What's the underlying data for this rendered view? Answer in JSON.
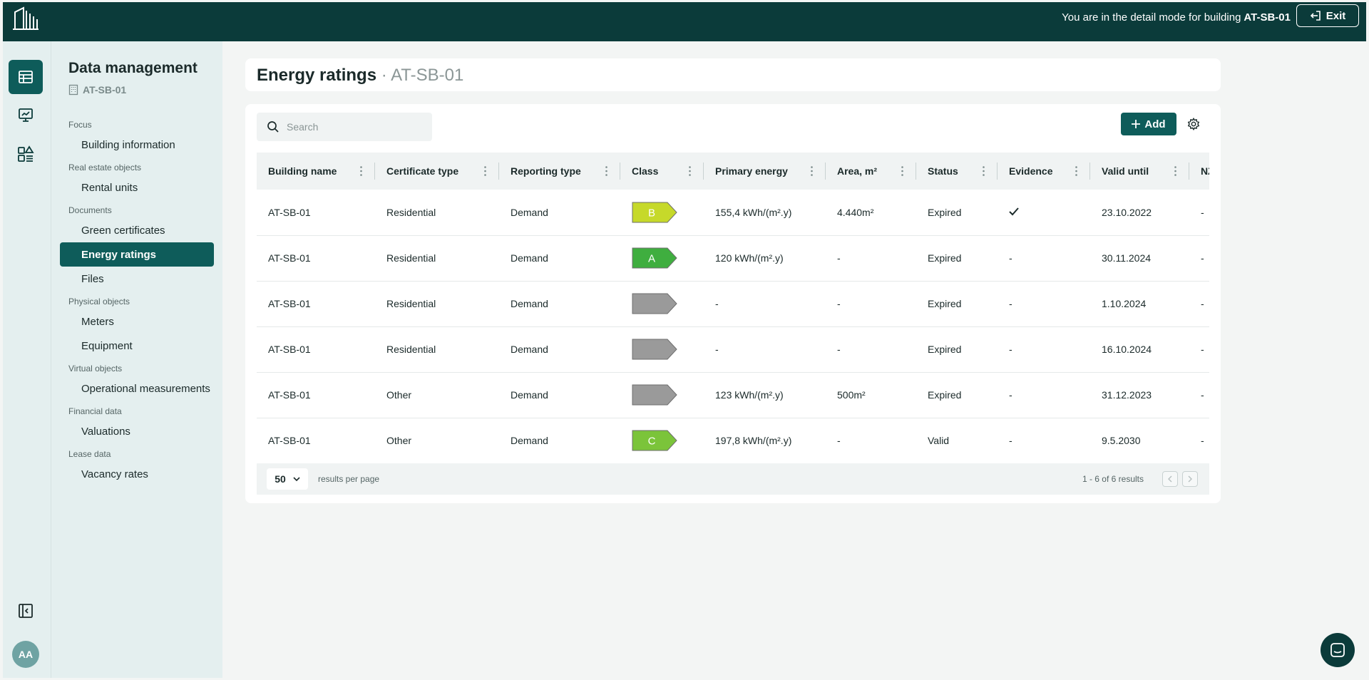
{
  "topbar": {
    "detail_prefix": "You are in the detail mode for building",
    "building": "AT-SB-01",
    "exit_label": "Exit"
  },
  "sidebar": {
    "title": "Data management",
    "building": "AT-SB-01",
    "nav": [
      {
        "type": "section",
        "label": "Focus"
      },
      {
        "type": "item",
        "label": "Building information"
      },
      {
        "type": "section",
        "label": "Real estate objects"
      },
      {
        "type": "item",
        "label": "Rental units"
      },
      {
        "type": "section",
        "label": "Documents"
      },
      {
        "type": "item",
        "label": "Green certificates"
      },
      {
        "type": "item",
        "label": "Energy ratings",
        "active": true
      },
      {
        "type": "item",
        "label": "Files"
      },
      {
        "type": "section",
        "label": "Physical objects"
      },
      {
        "type": "item",
        "label": "Meters"
      },
      {
        "type": "item",
        "label": "Equipment"
      },
      {
        "type": "section",
        "label": "Virtual objects"
      },
      {
        "type": "item",
        "label": "Operational measurements"
      },
      {
        "type": "section",
        "label": "Financial data"
      },
      {
        "type": "item",
        "label": "Valuations"
      },
      {
        "type": "section",
        "label": "Lease data"
      },
      {
        "type": "item",
        "label": "Vacancy rates"
      }
    ],
    "avatar_initials": "AA"
  },
  "page": {
    "title": "Energy ratings",
    "separator": " · ",
    "building": "AT-SB-01"
  },
  "toolbar": {
    "search_placeholder": "Search",
    "add_label": "Add"
  },
  "table": {
    "columns": [
      "Building name",
      "Certificate type",
      "Reporting type",
      "Class",
      "Primary energy",
      "Area, m²",
      "Status",
      "Evidence",
      "Valid until",
      "NZ"
    ],
    "rows": [
      {
        "building": "AT-SB-01",
        "certificate": "Residential",
        "reporting": "Demand",
        "class": "B",
        "primary_energy": "155,4 kWh/(m².y)",
        "area": "4.440m²",
        "status": "Expired",
        "evidence": "check",
        "valid_until": "23.10.2022",
        "nz": "-"
      },
      {
        "building": "AT-SB-01",
        "certificate": "Residential",
        "reporting": "Demand",
        "class": "A",
        "primary_energy": "120 kWh/(m².y)",
        "area": "-",
        "status": "Expired",
        "evidence": "-",
        "valid_until": "30.11.2024",
        "nz": "-"
      },
      {
        "building": "AT-SB-01",
        "certificate": "Residential",
        "reporting": "Demand",
        "class": "",
        "primary_energy": "-",
        "area": "-",
        "status": "Expired",
        "evidence": "-",
        "valid_until": "1.10.2024",
        "nz": "-"
      },
      {
        "building": "AT-SB-01",
        "certificate": "Residential",
        "reporting": "Demand",
        "class": "",
        "primary_energy": "-",
        "area": "-",
        "status": "Expired",
        "evidence": "-",
        "valid_until": "16.10.2024",
        "nz": "-"
      },
      {
        "building": "AT-SB-01",
        "certificate": "Other",
        "reporting": "Demand",
        "class": "",
        "primary_energy": "123 kWh/(m².y)",
        "area": "500m²",
        "status": "Expired",
        "evidence": "-",
        "valid_until": "31.12.2023",
        "nz": "-"
      },
      {
        "building": "AT-SB-01",
        "certificate": "Other",
        "reporting": "Demand",
        "class": "C",
        "primary_energy": "197,8 kWh/(m².y)",
        "area": "-",
        "status": "Valid",
        "evidence": "-",
        "valid_until": "9.5.2030",
        "nz": "-"
      }
    ]
  },
  "class_colors": {
    "A": "#3fae3f",
    "B": "#c6d92a",
    "C": "#7bc43a",
    "": "#9a9a9a"
  },
  "pagination": {
    "per_page": "50",
    "per_page_label": "results per page",
    "range": "1 -  6 of  6 results"
  },
  "colors": {
    "brand_dark": "#0b3b3a",
    "accent": "#0e5c5a"
  }
}
